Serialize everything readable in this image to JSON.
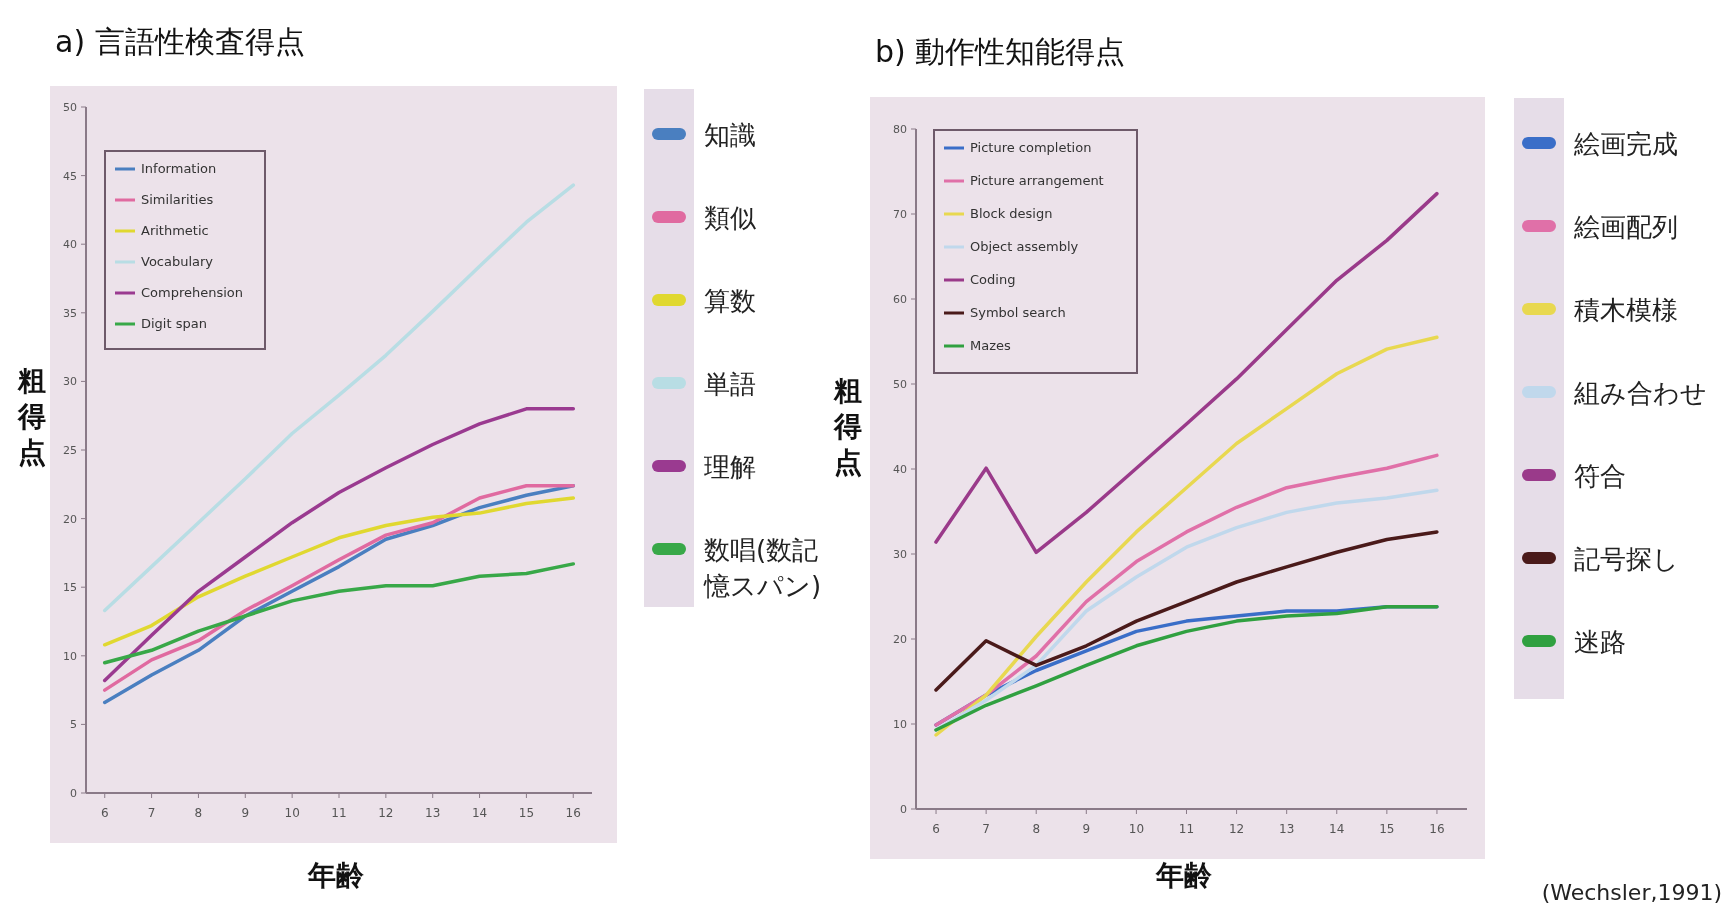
{
  "chart_data": [
    {
      "type": "line",
      "title": "a) 言語性検査得点",
      "xlabel": "年齢",
      "ylabel": "粗得点",
      "legend": "right",
      "x": [
        6,
        7,
        8,
        9,
        10,
        11,
        12,
        13,
        14,
        15,
        16
      ],
      "xlim": [
        5.6,
        16.4
      ],
      "xticks": [
        6,
        7,
        8,
        9,
        10,
        11,
        12,
        13,
        14,
        15,
        16
      ],
      "ylim": [
        0,
        50
      ],
      "yticks": [
        0,
        5,
        10,
        15,
        20,
        25,
        30,
        35,
        40,
        45,
        50
      ],
      "annotations": [
        "Information",
        "Similarities",
        "Arithmetic",
        "Vocabulary",
        "Comprehension",
        "Digit span"
      ],
      "series": [
        {
          "name": "知識",
          "color": "#4a7fc0",
          "values": [
            6.6,
            8.6,
            10.4,
            12.9,
            14.7,
            16.5,
            18.5,
            19.5,
            20.8,
            21.7,
            22.4
          ]
        },
        {
          "name": "類似",
          "color": "#e06aa0",
          "values": [
            7.5,
            9.7,
            11.1,
            13.3,
            15.1,
            17,
            18.8,
            19.7,
            21.5,
            22.4,
            22.4
          ]
        },
        {
          "name": "算数",
          "color": "#e0d830",
          "values": [
            10.8,
            12.2,
            14.3,
            15.8,
            17.2,
            18.6,
            19.5,
            20.1,
            20.4,
            21.1,
            21.5
          ]
        },
        {
          "name": "単語",
          "color": "#b8dde4",
          "values": [
            13.3,
            16.5,
            19.7,
            22.9,
            26.2,
            29,
            31.9,
            35.1,
            38.4,
            41.6,
            44.3
          ]
        },
        {
          "name": "理解",
          "color": "#9a3a90",
          "values": [
            8.2,
            11.5,
            14.7,
            17.2,
            19.7,
            21.9,
            23.7,
            25.4,
            26.9,
            28,
            28
          ]
        },
        {
          "name": "数唱(数記憶スパン)",
          "color": "#38a848",
          "values": [
            9.5,
            10.4,
            11.8,
            12.9,
            14,
            14.7,
            15.1,
            15.1,
            15.8,
            16,
            16.7
          ]
        }
      ]
    },
    {
      "type": "line",
      "title": "b) 動作性知能得点",
      "xlabel": "年齢",
      "ylabel": "粗得点",
      "legend": "right",
      "x": [
        6,
        7,
        8,
        9,
        10,
        11,
        12,
        13,
        14,
        15,
        16
      ],
      "xlim": [
        5.6,
        16.6
      ],
      "xticks": [
        6,
        7,
        8,
        9,
        10,
        11,
        12,
        13,
        14,
        15,
        16
      ],
      "ylim": [
        0,
        80
      ],
      "yticks": [
        0,
        10,
        20,
        30,
        40,
        50,
        60,
        70,
        80
      ],
      "annotations": [
        "Picture completion",
        "Picture arrangement",
        "Block design",
        "Object assembly",
        "Coding",
        "Symbol search",
        "Mazes",
        "(Wechsler,1991)"
      ],
      "series": [
        {
          "name": "絵画完成",
          "color": "#3a6ec8",
          "values": [
            9.9,
            13.4,
            16.3,
            18.6,
            20.9,
            22.1,
            22.7,
            23.3,
            23.3,
            23.8,
            23.8
          ]
        },
        {
          "name": "絵画配列",
          "color": "#e070a8",
          "values": [
            9.9,
            13.4,
            18,
            24.4,
            29.1,
            32.6,
            35.5,
            37.8,
            39,
            40.1,
            41.6
          ]
        },
        {
          "name": "積木模様",
          "color": "#e8d850",
          "values": [
            8.7,
            13.4,
            20.3,
            26.7,
            32.6,
            37.8,
            43,
            47.1,
            51.2,
            54.1,
            55.5
          ]
        },
        {
          "name": "組み合わせ",
          "color": "#c0d8ec",
          "values": [
            9.3,
            12.8,
            16.9,
            23.3,
            27.3,
            30.8,
            33.1,
            34.9,
            36,
            36.6,
            37.5
          ]
        },
        {
          "name": "符合",
          "color": "#9a3a8a",
          "values": [
            31.4,
            40.1,
            30.2,
            34.9,
            40.1,
            45.3,
            50.6,
            56.4,
            62.2,
            66.9,
            72.4
          ]
        },
        {
          "name": "記号探し",
          "color": "#4a1a1a",
          "values": [
            14,
            19.8,
            16.9,
            19.2,
            22.1,
            24.4,
            26.7,
            28.5,
            30.2,
            31.7,
            32.6
          ]
        },
        {
          "name": "迷路",
          "color": "#30a040",
          "values": [
            9.3,
            12.2,
            14.5,
            16.9,
            19.2,
            20.9,
            22.1,
            22.7,
            23,
            23.8,
            23.8
          ]
        }
      ]
    }
  ]
}
